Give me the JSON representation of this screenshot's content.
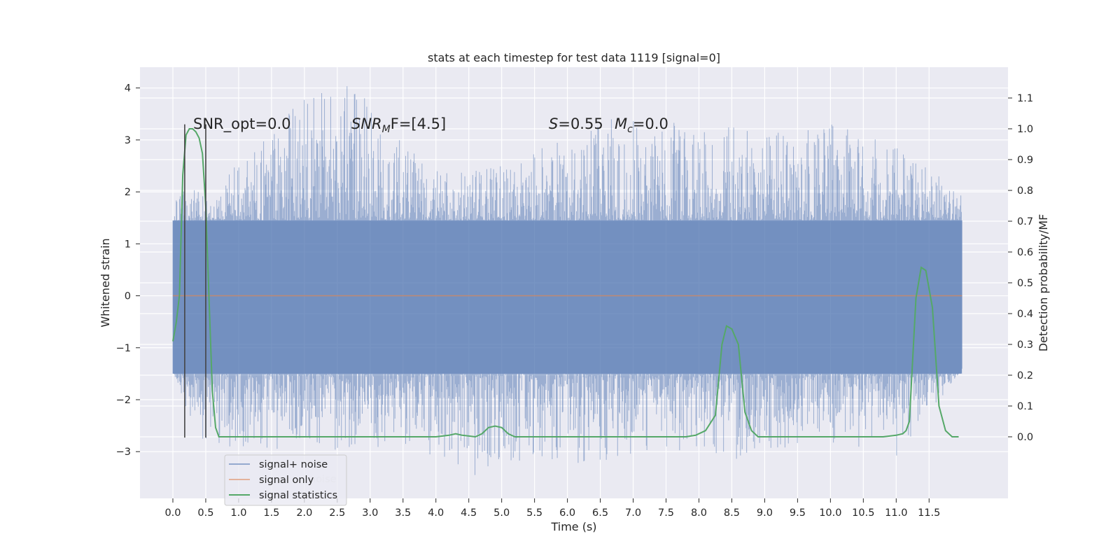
{
  "chart_data": {
    "type": "line",
    "title": "stats at each timestep for test data 1119 [signal=0]",
    "xlabel": "Time (s)",
    "ylabel": "Whitened strain",
    "y2label": "Detection probability/MF",
    "xlim": [
      -0.5,
      12.7
    ],
    "ylim": [
      -3.9,
      4.4
    ],
    "y2lim": [
      -0.2,
      1.2
    ],
    "x_ticks": [
      0.0,
      0.5,
      1.0,
      1.5,
      2.0,
      2.5,
      3.0,
      3.5,
      4.0,
      4.5,
      5.0,
      5.5,
      6.0,
      6.5,
      7.0,
      7.5,
      8.0,
      8.5,
      9.0,
      9.5,
      10.0,
      10.5,
      11.0,
      11.5
    ],
    "x_tick_labels": [
      "0.0",
      "0.5",
      "1.0",
      "1.5",
      "2.0",
      "2.5",
      "3.0",
      "3.5",
      "4.0",
      "4.5",
      "5.0",
      "5.5",
      "6.0",
      "6.5",
      "7.0",
      "7.5",
      "8.0",
      "8.5",
      "9.0",
      "9.5",
      "10.0",
      "10.5",
      "11.0",
      "11.5"
    ],
    "y_ticks": [
      -3,
      -2,
      -1,
      0,
      1,
      2,
      3,
      4
    ],
    "y_tick_labels": [
      "−3",
      "−2",
      "−1",
      "0",
      "1",
      "2",
      "3",
      "4"
    ],
    "y2_ticks": [
      0.0,
      0.1,
      0.2,
      0.3,
      0.4,
      0.5,
      0.6,
      0.7,
      0.8,
      0.9,
      1.0,
      1.1
    ],
    "y2_tick_labels": [
      "0.0",
      "0.1",
      "0.2",
      "0.3",
      "0.4",
      "0.5",
      "0.6",
      "0.7",
      "0.8",
      "0.9",
      "1.0",
      "1.1"
    ],
    "grid": true,
    "legend_position": "lower-left",
    "series": [
      {
        "name": "signal+ noise",
        "color": "#4c72b0",
        "axis": "left",
        "kind": "noise-band",
        "x_range": [
          0.0,
          12.0
        ],
        "envelope_upper": [
          [
            0.0,
            1.3
          ],
          [
            0.05,
            2.0
          ],
          [
            0.3,
            2.1
          ],
          [
            0.6,
            2.0
          ],
          [
            1.7,
            3.7
          ],
          [
            2.7,
            4.1
          ],
          [
            4.0,
            2.4
          ],
          [
            5.0,
            2.5
          ],
          [
            6.8,
            3.5
          ],
          [
            7.4,
            3.3
          ],
          [
            7.7,
            3.4
          ],
          [
            9.5,
            3.1
          ],
          [
            10.0,
            3.4
          ],
          [
            11.0,
            2.9
          ],
          [
            11.9,
            2.2
          ],
          [
            12.0,
            2.1
          ]
        ],
        "envelope_lower": [
          [
            0.0,
            -1.4
          ],
          [
            0.1,
            -1.9
          ],
          [
            0.5,
            -2.9
          ],
          [
            1.7,
            -3.0
          ],
          [
            3.7,
            -2.9
          ],
          [
            4.5,
            -3.5
          ],
          [
            5.5,
            -3.1
          ],
          [
            6.0,
            -3.3
          ],
          [
            7.4,
            -3.0
          ],
          [
            8.5,
            -3.2
          ],
          [
            9.7,
            -2.8
          ],
          [
            11.0,
            -3.1
          ],
          [
            11.9,
            -1.6
          ],
          [
            12.0,
            -1.4
          ]
        ]
      },
      {
        "name": "signal only",
        "color": "#dd8452",
        "axis": "left",
        "x": [
          0.0,
          12.0
        ],
        "y": [
          0.0,
          0.0
        ]
      },
      {
        "name": "signal statistics",
        "color": "#55a868",
        "axis": "right",
        "x": [
          0.0,
          0.05,
          0.1,
          0.15,
          0.2,
          0.25,
          0.3,
          0.35,
          0.4,
          0.45,
          0.5,
          0.55,
          0.6,
          0.65,
          0.7,
          1.0,
          2.0,
          2.4,
          2.6,
          3.0,
          3.6,
          3.8,
          4.0,
          4.2,
          4.3,
          4.4,
          4.6,
          4.7,
          4.8,
          4.9,
          5.0,
          5.1,
          5.2,
          5.4,
          6.0,
          7.0,
          7.8,
          7.95,
          8.1,
          8.25,
          8.35,
          8.42,
          8.5,
          8.6,
          8.7,
          8.8,
          8.9,
          9.0,
          9.3,
          10.0,
          10.5,
          10.8,
          11.0,
          11.1,
          11.15,
          11.2,
          11.3,
          11.38,
          11.45,
          11.55,
          11.65,
          11.75,
          11.85,
          11.95
        ],
        "y": [
          0.31,
          0.37,
          0.46,
          0.85,
          0.98,
          1.0,
          1.0,
          0.99,
          0.97,
          0.92,
          0.75,
          0.45,
          0.15,
          0.03,
          0.0,
          0.0,
          0.0,
          0.0,
          0.0,
          0.0,
          0.0,
          0.0,
          0.0,
          0.005,
          0.01,
          0.005,
          0.0,
          0.01,
          0.03,
          0.035,
          0.03,
          0.01,
          0.0,
          0.0,
          0.0,
          0.0,
          0.0,
          0.005,
          0.02,
          0.07,
          0.3,
          0.36,
          0.35,
          0.3,
          0.08,
          0.02,
          0.0,
          0.0,
          0.0,
          0.0,
          0.0,
          0.0,
          0.005,
          0.01,
          0.02,
          0.05,
          0.45,
          0.55,
          0.54,
          0.42,
          0.1,
          0.02,
          0.0,
          0.0
        ]
      }
    ],
    "vertical_markers": [
      {
        "x": 0.18,
        "y_from": -2.73,
        "y_to": 3.3,
        "color": "#444444"
      },
      {
        "x": 0.5,
        "y_from": -2.73,
        "y_to": 3.3,
        "color": "#444444"
      }
    ],
    "annotations": {
      "snr_opt": "SNR_opt=0.0",
      "snr_mf_italic": "SNR",
      "snr_mf_sub": "M",
      "snr_mf_rest": "F=[4.5]",
      "s_symbol": "S",
      "s_value": "=0.55",
      "mc_symbol": "M",
      "mc_sub": "c",
      "mc_value": "=0.0"
    },
    "legend_overlap_text": "noise"
  }
}
